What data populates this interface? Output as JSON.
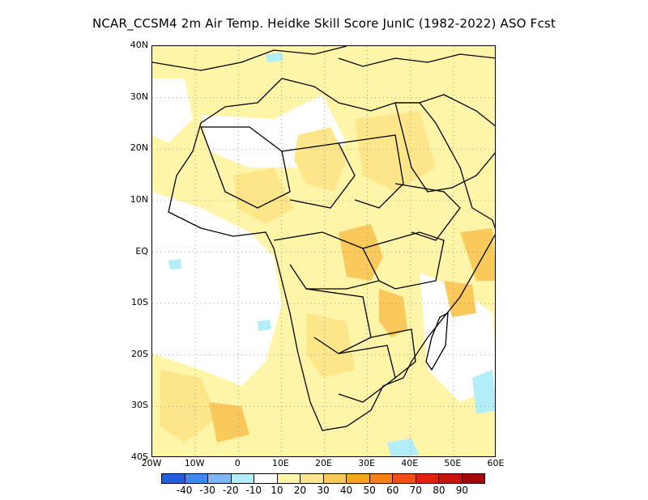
{
  "title": "NCAR_CCSM4  2m Air Temp. Heidke Skill Score JunIC (1982-2022) ASO Fcst",
  "axes": {
    "lat_ticks": [
      "40N",
      "30N",
      "20N",
      "10N",
      "EQ",
      "10S",
      "20S",
      "30S",
      "40S"
    ],
    "lon_ticks": [
      "20W",
      "10W",
      "0",
      "10E",
      "20E",
      "30E",
      "40E",
      "50E",
      "60E"
    ],
    "lat_range": [
      -40,
      40
    ],
    "lon_range": [
      -20,
      60
    ],
    "grid": "dotted"
  },
  "colorbar": {
    "colors": [
      "#1f5fd8",
      "#3c8cf0",
      "#7fb6f5",
      "#b2eef7",
      "#ffffff",
      "#fff5a8",
      "#fde68a",
      "#f9c95b",
      "#f7a41f",
      "#f4811a",
      "#f04f10",
      "#e1220a",
      "#c4150d",
      "#a0080a"
    ],
    "labels": [
      "-40",
      "-30",
      "-20",
      "-10",
      "10",
      "20",
      "30",
      "40",
      "50",
      "60",
      "70",
      "80",
      "90"
    ]
  },
  "map": {
    "region": "Africa",
    "dominant_fill": "light-yellow-to-orange (positive skill 10-40)",
    "coastline_color": "#000000"
  }
}
